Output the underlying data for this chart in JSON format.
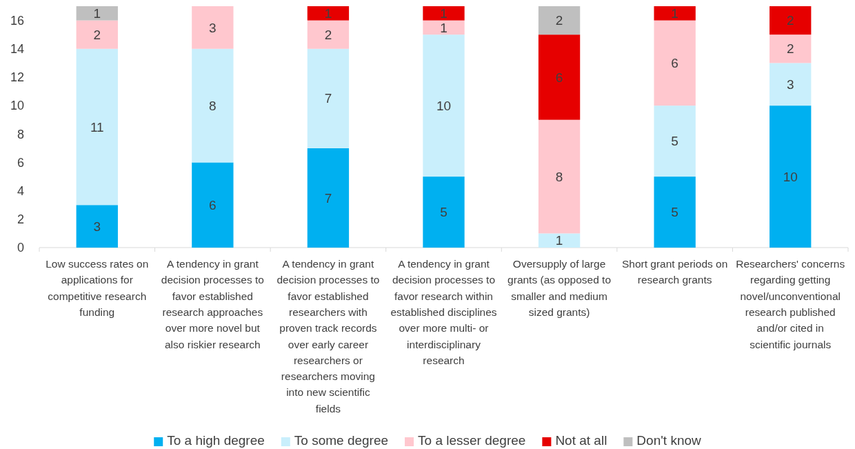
{
  "chart_data": {
    "type": "bar",
    "stacked": true,
    "categories": [
      "Low success rates on applications for competitive research funding",
      "A tendency in grant decision processes to favor established research approaches over more novel but also riskier research",
      "A tendency in grant decision processes to favor established researchers with proven track records over early career researchers or researchers moving into new scientific fields",
      "A tendency in grant decision processes to favor research within established disciplines over more multi- or interdisciplinary research",
      "Oversupply of large grants (as opposed to smaller and medium sized grants)",
      "Short grant periods on research grants",
      "Researchers' concerns regarding getting novel/unconventional research published and/or cited in scientific journals"
    ],
    "series": [
      {
        "name": "To a high degree",
        "color": "#00b0f0",
        "values": [
          3,
          6,
          7,
          5,
          null,
          5,
          10
        ]
      },
      {
        "name": "To some degree",
        "color": "#c9effc",
        "values": [
          11,
          8,
          7,
          10,
          1,
          5,
          3
        ]
      },
      {
        "name": "To a lesser degree",
        "color": "#ffc7ce",
        "values": [
          2,
          3,
          2,
          1,
          8,
          6,
          2
        ]
      },
      {
        "name": "Not at all",
        "color": "#e60000",
        "values": [
          null,
          null,
          1,
          1,
          6,
          1,
          2
        ]
      },
      {
        "name": "Don't know",
        "color": "#bfbfbf",
        "values": [
          1,
          null,
          null,
          null,
          2,
          null,
          null
        ]
      }
    ],
    "ylim": [
      0,
      17
    ],
    "yticks": [
      0,
      2,
      4,
      6,
      8,
      10,
      12,
      14,
      16
    ],
    "data_labels": true,
    "legend": "bottom",
    "grid": false
  }
}
